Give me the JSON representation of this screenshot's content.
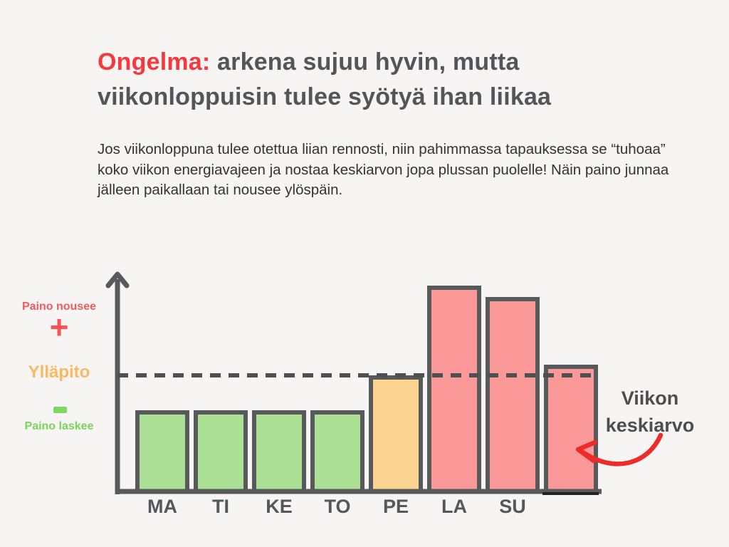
{
  "title": {
    "highlight": "Ongelma:",
    "rest": " arkena sujuu hyvin, mutta viikonloppuisin tulee syötyä ihan liikaa"
  },
  "intro": "Jos viikonloppuna tulee otettua liian rennosti, niin pahimmassa tapauksessa se “tuhoaa” koko viikon energiavajeen ja nostaa keskiarvon jopa plussan puolelle! Näin paino junnaa jälleen paikallaan tai nousee ylöspäin.",
  "y_axis": {
    "weight_up_label": "Paino nousee",
    "plus_symbol": "+",
    "maintenance_label": "Ylläpito",
    "minus_symbol": "−",
    "weight_down_label": "Paino laskee"
  },
  "annotation": {
    "line1": "Viikon",
    "line2": "keskiarvo"
  },
  "chart_data": {
    "type": "bar",
    "title": "",
    "xlabel": "",
    "ylabel": "",
    "categories": [
      "MA",
      "TI",
      "KE",
      "TO",
      "PE",
      "LA",
      "SU",
      ""
    ],
    "values_vs_maintenance": [
      0.7,
      0.7,
      0.7,
      0.7,
      1.0,
      1.77,
      1.67,
      1.09
    ],
    "bar_roles": [
      "weekday-deficit",
      "weekday-deficit",
      "weekday-deficit",
      "weekday-deficit",
      "maintenance",
      "weekend-surplus",
      "weekend-surplus",
      "weekly-average"
    ],
    "bar_colors": [
      "#ace096",
      "#ace096",
      "#ace096",
      "#ace096",
      "#fbd491",
      "#fb9898",
      "#fb9898",
      "#fb9898"
    ],
    "reference_line": {
      "label": "Ylläpito",
      "value": 1.0,
      "style": "dashed"
    },
    "legend_position": "none",
    "grid": false,
    "notes": "Qualitative y-axis: above dashed maintenance line weight rises (Paino nousee +), below it weight falls (Paino laskee −). Unlabeled last bar is the weekly average (Viikon keskiarvo)."
  },
  "colors": {
    "background": "#f6f5f3",
    "accent_red": "#f8383d",
    "heading_gray": "#545558",
    "body_text": "#333333",
    "axis_and_border": "#58595b",
    "green_fill": "#ace096",
    "orange_fill": "#fbd491",
    "red_fill": "#fb9898",
    "label_red": "#f4595e",
    "label_orange": "#fbb863",
    "label_green": "#77d656",
    "arrow_red": "#ee2b2b"
  }
}
